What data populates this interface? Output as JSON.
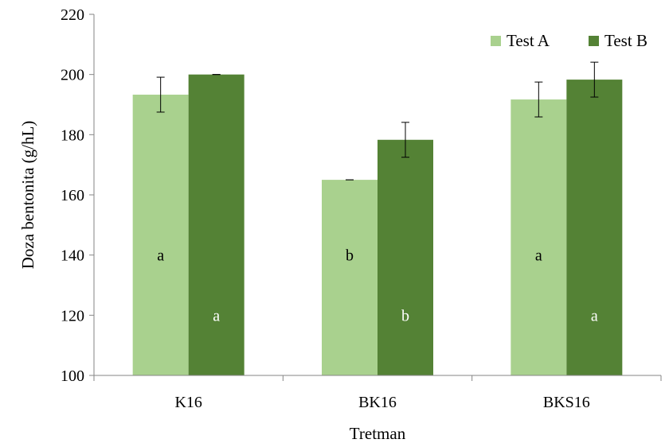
{
  "chart_data": {
    "type": "bar",
    "title": "",
    "xlabel": "Tretman",
    "ylabel": "Doza bentonita (g/hL)",
    "ylim": [
      100,
      220
    ],
    "yticks": [
      100,
      120,
      140,
      160,
      180,
      200,
      220
    ],
    "grid": false,
    "legend_position": "top-right",
    "categories": [
      "K16",
      "BK16",
      "BKS16"
    ],
    "series": [
      {
        "name": "Test A",
        "color": "#a9d18e",
        "values": [
          193.3,
          165.0,
          191.7
        ],
        "errors": [
          5.8,
          0.0,
          5.8
        ],
        "letters": [
          "a",
          "b",
          "a"
        ],
        "letter_value": 140,
        "letter_color": "#000000"
      },
      {
        "name": "Test B",
        "color": "#548235",
        "values": [
          200.0,
          178.3,
          198.3
        ],
        "errors": [
          0.0,
          5.8,
          5.8
        ],
        "letters": [
          "a",
          "b",
          "a"
        ],
        "letter_value": 120,
        "letter_color": "#ffffff"
      }
    ]
  }
}
